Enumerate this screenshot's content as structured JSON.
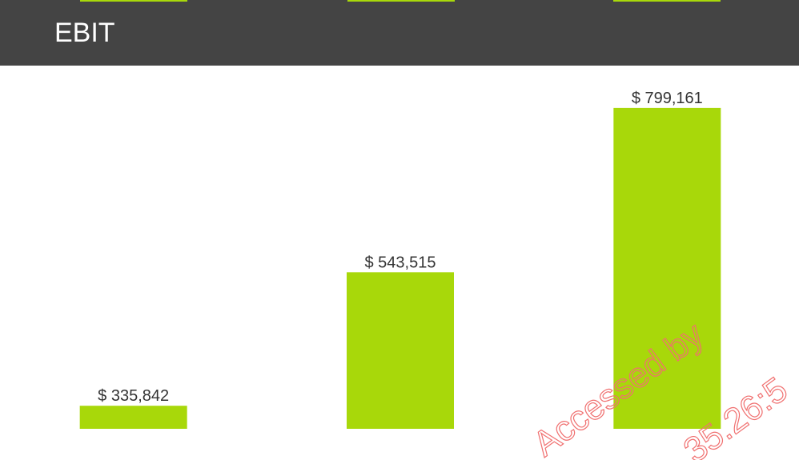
{
  "header": {
    "title": "EBIT"
  },
  "chart_data": {
    "type": "bar",
    "values": [
      335842,
      543515,
      799161
    ],
    "value_labels": [
      "$ 335,842",
      "$ 543,515",
      "$ 799,161"
    ],
    "color": "#a8d80a",
    "ylim": [
      300000,
      860000
    ]
  },
  "watermark": {
    "lines": [
      "Accessed by",
      "35.26:5"
    ]
  }
}
